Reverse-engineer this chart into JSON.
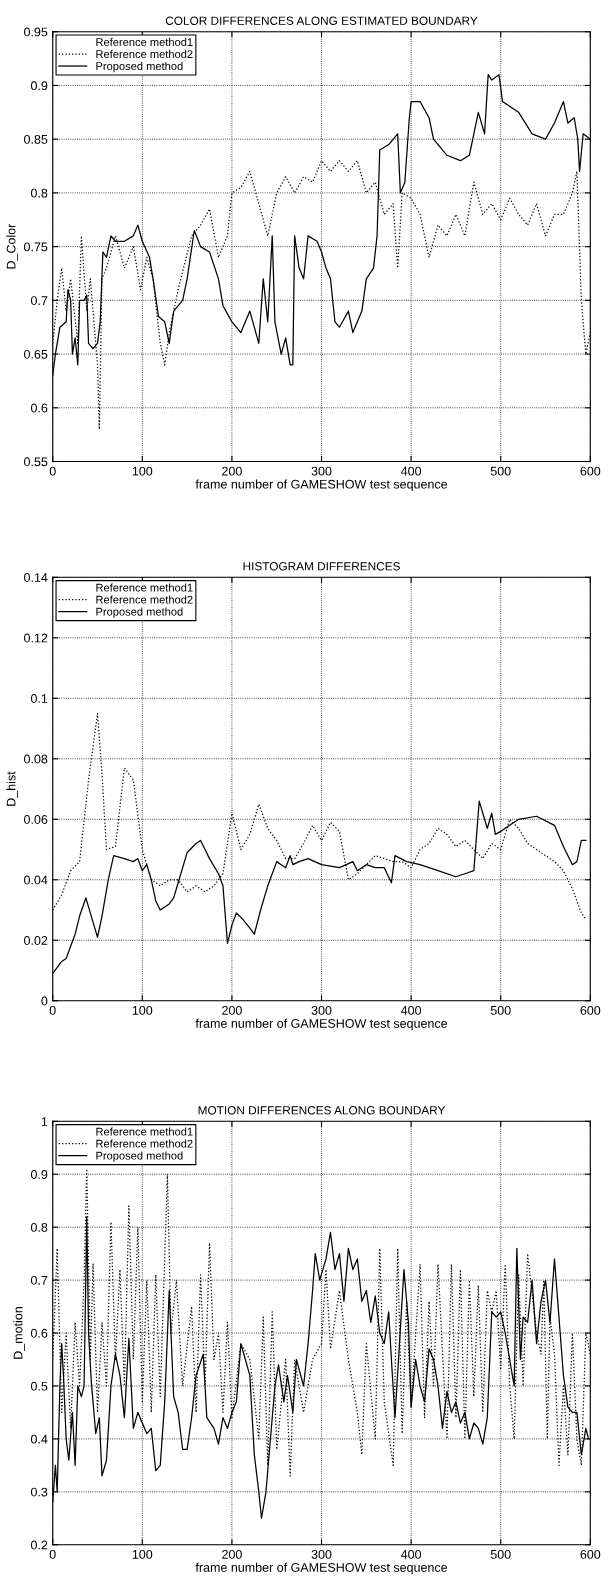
{
  "chart_data": [
    {
      "type": "line",
      "title": "COLOR DIFFERENCES ALONG ESTIMATED BOUNDARY",
      "xlabel": "frame number of GAMESHOW test sequence",
      "ylabel": "D_Color",
      "xlim": [
        0,
        600
      ],
      "xticks": [
        0,
        100,
        200,
        300,
        400,
        500,
        600
      ],
      "ylim": [
        0.55,
        0.95
      ],
      "yticks": [
        0.55,
        0.6,
        0.65,
        0.7,
        0.75,
        0.8,
        0.85,
        0.9,
        0.95
      ],
      "grid": true,
      "legend": "top left",
      "series": [
        {
          "name": "Reference method1"
        },
        {
          "name": "Reference method2",
          "color": "#000000",
          "line_style": "dotted",
          "x": [
            0,
            5,
            10,
            15,
            20,
            28,
            32,
            38,
            42,
            50,
            52,
            55,
            60,
            70,
            80,
            90,
            98,
            105,
            112,
            120,
            125,
            130,
            140,
            155,
            165,
            175,
            185,
            195,
            200,
            210,
            220,
            230,
            240,
            250,
            260,
            270,
            280,
            290,
            300,
            310,
            320,
            330,
            340,
            350,
            360,
            370,
            380,
            385,
            390,
            400,
            410,
            420,
            430,
            440,
            450,
            460,
            470,
            480,
            490,
            500,
            510,
            520,
            530,
            540,
            550,
            560,
            570,
            580,
            585,
            590,
            595,
            600
          ],
          "values": [
            0.66,
            0.7,
            0.73,
            0.69,
            0.72,
            0.66,
            0.76,
            0.69,
            0.72,
            0.64,
            0.58,
            0.72,
            0.73,
            0.76,
            0.73,
            0.75,
            0.71,
            0.74,
            0.72,
            0.66,
            0.64,
            0.67,
            0.71,
            0.76,
            0.77,
            0.785,
            0.74,
            0.76,
            0.8,
            0.805,
            0.82,
            0.79,
            0.76,
            0.8,
            0.815,
            0.8,
            0.815,
            0.81,
            0.83,
            0.82,
            0.83,
            0.82,
            0.83,
            0.8,
            0.81,
            0.78,
            0.79,
            0.73,
            0.8,
            0.795,
            0.78,
            0.74,
            0.77,
            0.76,
            0.78,
            0.76,
            0.81,
            0.78,
            0.79,
            0.775,
            0.795,
            0.78,
            0.77,
            0.79,
            0.76,
            0.78,
            0.78,
            0.8,
            0.82,
            0.7,
            0.65,
            0.67
          ]
        },
        {
          "name": "Proposed method",
          "color": "#000000",
          "line_style": "solid",
          "x": [
            0,
            3,
            8,
            15,
            17,
            20,
            22,
            25,
            28,
            30,
            35,
            38,
            40,
            45,
            50,
            53,
            56,
            60,
            65,
            70,
            80,
            90,
            95,
            100,
            108,
            112,
            118,
            125,
            130,
            135,
            145,
            150,
            158,
            165,
            175,
            185,
            190,
            200,
            210,
            220,
            230,
            235,
            240,
            245,
            248,
            255,
            260,
            265,
            268,
            270,
            275,
            280,
            285,
            295,
            300,
            305,
            310,
            315,
            320,
            330,
            335,
            345,
            350,
            358,
            362,
            365,
            375,
            385,
            388,
            393,
            398,
            400,
            410,
            420,
            425,
            440,
            455,
            465,
            475,
            482,
            486,
            490,
            498,
            502,
            520,
            535,
            550,
            560,
            570,
            575,
            582,
            586,
            588,
            592,
            600
          ],
          "values": [
            0.63,
            0.65,
            0.675,
            0.68,
            0.71,
            0.7,
            0.65,
            0.665,
            0.64,
            0.7,
            0.7,
            0.705,
            0.66,
            0.655,
            0.66,
            0.68,
            0.745,
            0.74,
            0.76,
            0.755,
            0.755,
            0.76,
            0.77,
            0.755,
            0.74,
            0.72,
            0.685,
            0.68,
            0.66,
            0.69,
            0.7,
            0.72,
            0.765,
            0.75,
            0.745,
            0.72,
            0.695,
            0.68,
            0.67,
            0.69,
            0.66,
            0.72,
            0.68,
            0.76,
            0.68,
            0.65,
            0.665,
            0.64,
            0.64,
            0.76,
            0.73,
            0.72,
            0.76,
            0.755,
            0.745,
            0.73,
            0.72,
            0.68,
            0.675,
            0.69,
            0.67,
            0.69,
            0.72,
            0.73,
            0.76,
            0.84,
            0.845,
            0.855,
            0.8,
            0.81,
            0.87,
            0.885,
            0.885,
            0.87,
            0.85,
            0.835,
            0.83,
            0.835,
            0.875,
            0.855,
            0.91,
            0.905,
            0.91,
            0.885,
            0.875,
            0.855,
            0.85,
            0.865,
            0.885,
            0.865,
            0.87,
            0.85,
            0.82,
            0.855,
            0.85
          ]
        }
      ]
    },
    {
      "type": "line",
      "title": "HISTOGRAM DIFFERENCES",
      "xlabel": "frame number of GAMESHOW test sequence",
      "ylabel": "D_hist",
      "xlim": [
        0,
        600
      ],
      "xticks": [
        0,
        100,
        200,
        300,
        400,
        500,
        600
      ],
      "ylim": [
        0,
        0.14
      ],
      "yticks": [
        0,
        0.02,
        0.04,
        0.06,
        0.08,
        0.1,
        0.12,
        0.14
      ],
      "grid": true,
      "legend": "top left",
      "series": [
        {
          "name": "Reference method1"
        },
        {
          "name": "Reference method2",
          "color": "#000000",
          "line_style": "dotted",
          "x": [
            0,
            10,
            20,
            30,
            40,
            50,
            55,
            60,
            70,
            80,
            90,
            100,
            110,
            120,
            130,
            140,
            150,
            160,
            170,
            180,
            190,
            200,
            210,
            220,
            230,
            240,
            250,
            260,
            270,
            280,
            290,
            300,
            310,
            320,
            330,
            340,
            350,
            360,
            370,
            380,
            390,
            400,
            410,
            420,
            430,
            440,
            450,
            460,
            470,
            480,
            490,
            500,
            510,
            520,
            530,
            540,
            550,
            560,
            570,
            580,
            590,
            595
          ],
          "values": [
            0.03,
            0.035,
            0.043,
            0.046,
            0.073,
            0.095,
            0.075,
            0.05,
            0.051,
            0.077,
            0.073,
            0.05,
            0.04,
            0.038,
            0.04,
            0.04,
            0.036,
            0.038,
            0.036,
            0.038,
            0.042,
            0.062,
            0.05,
            0.055,
            0.065,
            0.057,
            0.053,
            0.047,
            0.047,
            0.052,
            0.058,
            0.053,
            0.059,
            0.056,
            0.04,
            0.042,
            0.045,
            0.048,
            0.047,
            0.046,
            0.046,
            0.044,
            0.05,
            0.052,
            0.057,
            0.055,
            0.051,
            0.053,
            0.05,
            0.047,
            0.052,
            0.05,
            0.06,
            0.057,
            0.052,
            0.05,
            0.048,
            0.046,
            0.043,
            0.037,
            0.029,
            0.027
          ]
        },
        {
          "name": "Proposed method",
          "color": "#000000",
          "line_style": "solid",
          "x": [
            0,
            5,
            10,
            15,
            20,
            25,
            30,
            37,
            45,
            50,
            55,
            62,
            68,
            80,
            90,
            95,
            100,
            105,
            110,
            115,
            120,
            130,
            135,
            140,
            150,
            160,
            165,
            175,
            185,
            190,
            195,
            200,
            205,
            212,
            220,
            225,
            232,
            240,
            250,
            255,
            260,
            265,
            268,
            275,
            285,
            300,
            320,
            335,
            340,
            350,
            360,
            370,
            378,
            382,
            395,
            410,
            430,
            450,
            460,
            470,
            476,
            480,
            485,
            490,
            494,
            500,
            510,
            520,
            540,
            560,
            570,
            580,
            585,
            590,
            595
          ],
          "values": [
            0.009,
            0.011,
            0.013,
            0.014,
            0.018,
            0.022,
            0.028,
            0.034,
            0.026,
            0.021,
            0.028,
            0.04,
            0.048,
            0.047,
            0.046,
            0.047,
            0.043,
            0.045,
            0.04,
            0.033,
            0.03,
            0.032,
            0.034,
            0.039,
            0.049,
            0.052,
            0.053,
            0.047,
            0.042,
            0.038,
            0.019,
            0.025,
            0.029,
            0.027,
            0.024,
            0.022,
            0.03,
            0.038,
            0.046,
            0.045,
            0.044,
            0.048,
            0.045,
            0.046,
            0.047,
            0.045,
            0.044,
            0.046,
            0.043,
            0.045,
            0.044,
            0.044,
            0.039,
            0.048,
            0.046,
            0.045,
            0.043,
            0.041,
            0.042,
            0.043,
            0.066,
            0.062,
            0.057,
            0.062,
            0.055,
            0.056,
            0.058,
            0.06,
            0.061,
            0.058,
            0.051,
            0.045,
            0.046,
            0.053,
            0.053
          ]
        }
      ]
    },
    {
      "type": "line",
      "title": "MOTION DIFFERENCES ALONG BOUNDARY",
      "xlabel": "frame number of GAMESHOW test sequence",
      "ylabel": "D_motion",
      "xlim": [
        0,
        600
      ],
      "xticks": [
        0,
        100,
        200,
        300,
        400,
        500,
        600
      ],
      "ylim": [
        0.2,
        1
      ],
      "yticks": [
        0.2,
        0.3,
        0.4,
        0.5,
        0.6,
        0.7,
        0.8,
        0.9,
        1
      ],
      "grid": true,
      "legend": "top left",
      "series": [
        {
          "name": "Reference method1"
        },
        {
          "name": "Reference method2",
          "color": "#000000",
          "line_style": "dotted",
          "x": [
            0,
            5,
            10,
            15,
            20,
            25,
            30,
            35,
            38,
            42,
            45,
            50,
            55,
            60,
            65,
            70,
            75,
            80,
            85,
            90,
            95,
            100,
            105,
            110,
            115,
            120,
            128,
            132,
            138,
            145,
            155,
            160,
            165,
            170,
            175,
            180,
            185,
            190,
            195,
            200,
            210,
            220,
            230,
            235,
            240,
            245,
            250,
            260,
            265,
            270,
            280,
            290,
            300,
            305,
            310,
            320,
            330,
            340,
            345,
            350,
            360,
            365,
            370,
            380,
            385,
            390,
            395,
            400,
            410,
            415,
            420,
            425,
            430,
            440,
            445,
            450,
            455,
            460,
            465,
            470,
            475,
            480,
            485,
            490,
            495,
            500,
            505,
            510,
            515,
            520,
            525,
            530,
            540,
            545,
            548,
            552,
            555,
            560,
            565,
            570,
            575,
            580,
            585,
            590,
            595,
            600
          ],
          "values": [
            0.55,
            0.76,
            0.45,
            0.6,
            0.42,
            0.62,
            0.5,
            0.7,
            0.91,
            0.55,
            0.73,
            0.45,
            0.62,
            0.5,
            0.81,
            0.55,
            0.72,
            0.5,
            0.84,
            0.55,
            0.8,
            0.47,
            0.7,
            0.45,
            0.71,
            0.48,
            0.9,
            0.6,
            0.7,
            0.5,
            0.65,
            0.45,
            0.71,
            0.5,
            0.77,
            0.55,
            0.6,
            0.45,
            0.62,
            0.44,
            0.58,
            0.55,
            0.4,
            0.63,
            0.35,
            0.64,
            0.38,
            0.55,
            0.33,
            0.55,
            0.45,
            0.55,
            0.58,
            0.72,
            0.57,
            0.68,
            0.55,
            0.45,
            0.37,
            0.58,
            0.4,
            0.76,
            0.47,
            0.35,
            0.76,
            0.41,
            0.66,
            0.46,
            0.73,
            0.44,
            0.66,
            0.5,
            0.73,
            0.4,
            0.73,
            0.44,
            0.72,
            0.4,
            0.7,
            0.48,
            0.69,
            0.45,
            0.68,
            0.64,
            0.68,
            0.53,
            0.73,
            0.5,
            0.4,
            0.71,
            0.5,
            0.75,
            0.6,
            0.56,
            0.7,
            0.4,
            0.63,
            0.56,
            0.35,
            0.5,
            0.37,
            0.6,
            0.4,
            0.35,
            0.6,
            0.56
          ]
        },
        {
          "name": "Proposed method",
          "color": "#000000",
          "line_style": "solid",
          "x": [
            0,
            3,
            5,
            8,
            10,
            12,
            15,
            18,
            22,
            25,
            28,
            32,
            35,
            38,
            40,
            43,
            48,
            52,
            55,
            60,
            65,
            70,
            75,
            80,
            85,
            90,
            95,
            100,
            105,
            110,
            115,
            120,
            125,
            130,
            135,
            140,
            145,
            150,
            155,
            160,
            168,
            172,
            180,
            185,
            190,
            195,
            200,
            205,
            210,
            215,
            220,
            225,
            230,
            233,
            238,
            242,
            248,
            252,
            258,
            262,
            268,
            272,
            280,
            285,
            290,
            293,
            298,
            305,
            310,
            315,
            320,
            325,
            330,
            335,
            340,
            345,
            350,
            355,
            360,
            365,
            370,
            375,
            378,
            382,
            387,
            392,
            397,
            400,
            405,
            410,
            415,
            420,
            425,
            430,
            435,
            440,
            445,
            450,
            455,
            460,
            465,
            470,
            475,
            480,
            485,
            490,
            495,
            500,
            505,
            510,
            515,
            518,
            522,
            525,
            530,
            535,
            540,
            545,
            550,
            555,
            560,
            565,
            570,
            575,
            580,
            585,
            590,
            595,
            598
          ],
          "values": [
            0.28,
            0.35,
            0.3,
            0.5,
            0.58,
            0.52,
            0.4,
            0.36,
            0.45,
            0.35,
            0.5,
            0.48,
            0.5,
            0.82,
            0.6,
            0.51,
            0.41,
            0.44,
            0.33,
            0.36,
            0.5,
            0.56,
            0.52,
            0.44,
            0.59,
            0.42,
            0.45,
            0.43,
            0.41,
            0.42,
            0.34,
            0.35,
            0.47,
            0.68,
            0.48,
            0.45,
            0.38,
            0.38,
            0.44,
            0.52,
            0.56,
            0.44,
            0.42,
            0.39,
            0.44,
            0.42,
            0.45,
            0.47,
            0.58,
            0.55,
            0.52,
            0.37,
            0.3,
            0.25,
            0.3,
            0.38,
            0.5,
            0.54,
            0.47,
            0.52,
            0.45,
            0.55,
            0.5,
            0.58,
            0.68,
            0.75,
            0.7,
            0.74,
            0.79,
            0.72,
            0.75,
            0.66,
            0.76,
            0.72,
            0.74,
            0.66,
            0.68,
            0.62,
            0.67,
            0.6,
            0.58,
            0.64,
            0.55,
            0.44,
            0.58,
            0.72,
            0.62,
            0.46,
            0.55,
            0.5,
            0.47,
            0.57,
            0.55,
            0.5,
            0.42,
            0.49,
            0.45,
            0.47,
            0.43,
            0.45,
            0.4,
            0.43,
            0.42,
            0.39,
            0.44,
            0.64,
            0.63,
            0.64,
            0.6,
            0.55,
            0.5,
            0.76,
            0.55,
            0.63,
            0.62,
            0.7,
            0.58,
            0.66,
            0.7,
            0.62,
            0.74,
            0.63,
            0.52,
            0.46,
            0.45,
            0.45,
            0.37,
            0.42,
            0.4
          ]
        }
      ]
    }
  ]
}
